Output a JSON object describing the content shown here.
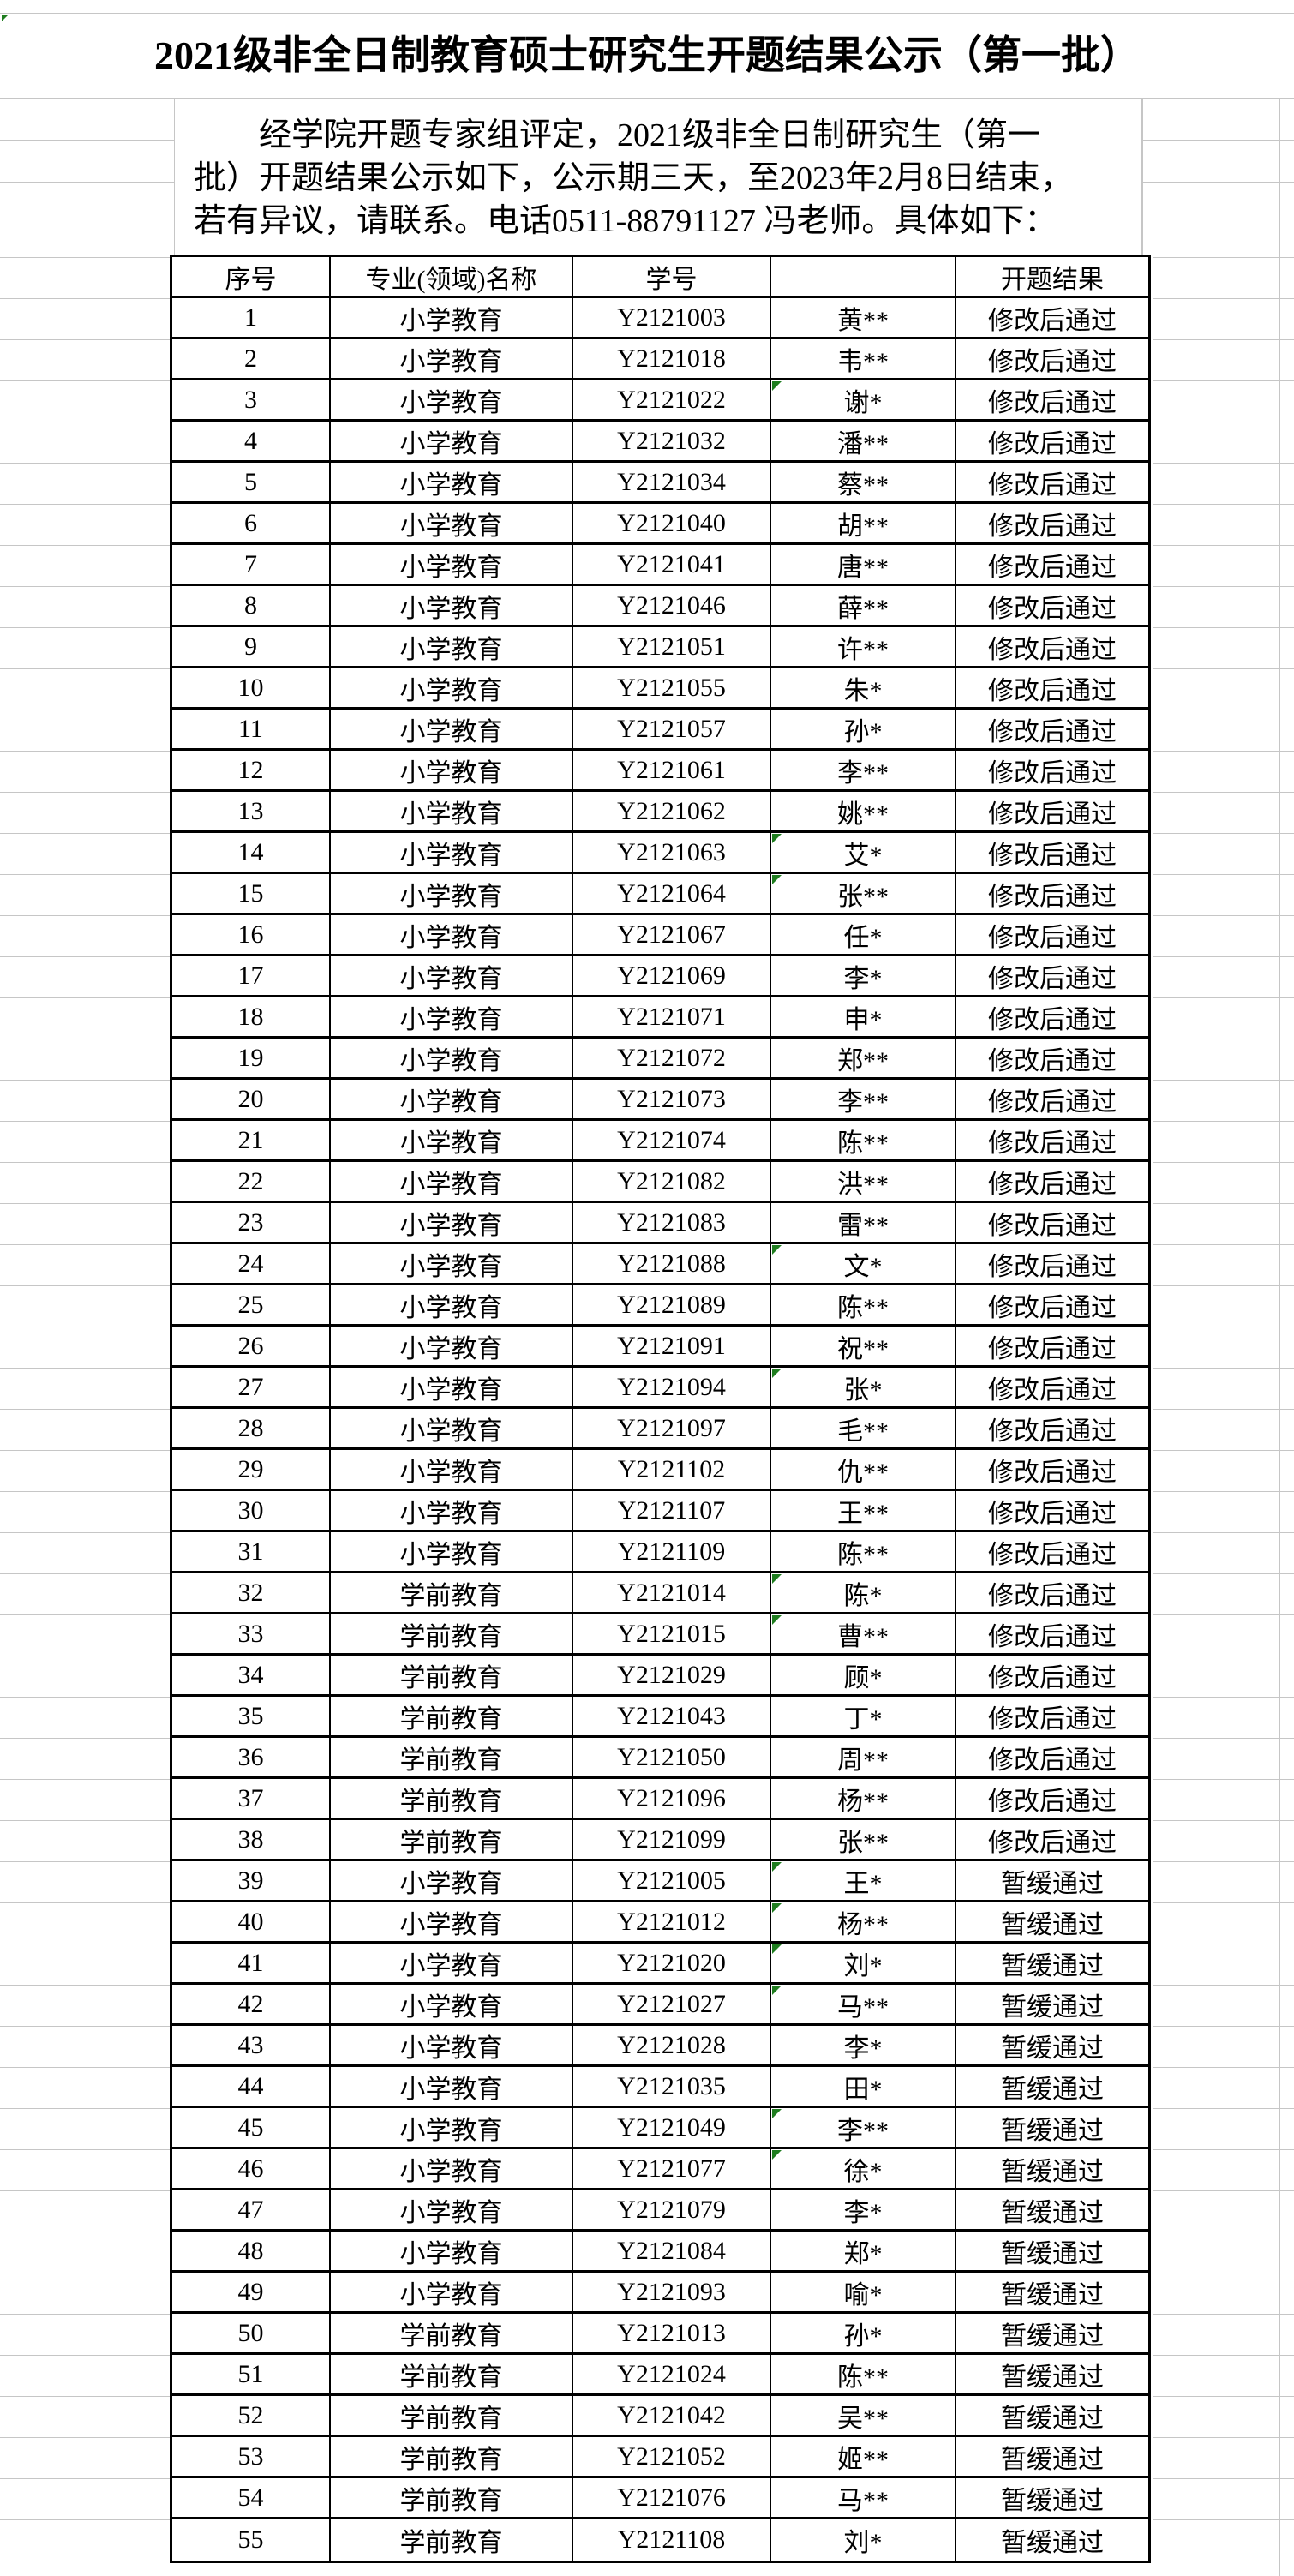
{
  "page": {
    "grid_color": "#c6c6c6",
    "table_border_color": "#000000",
    "flag_color": "#1f7d1f",
    "background": "#ffffff"
  },
  "title": "2021级非全日制教育硕士研究生开题结果公示（第一批）",
  "notice": {
    "lines": [
      "经学院开题专家组评定，2021级非全日制研究生（第一",
      "批）开题结果公示如下，公示期三天，至2023年2月8日结束，",
      "若有异议，请联系。电话0511-88791127 冯老师。具体如下："
    ]
  },
  "table": {
    "headers": [
      "序号",
      "专业(领域)名称",
      "学号",
      "",
      "开题结果"
    ],
    "rows": [
      {
        "no": "1",
        "major": "小学教育",
        "id": "Y2121003",
        "name": "黄**",
        "result": "修改后通过",
        "flag": false
      },
      {
        "no": "2",
        "major": "小学教育",
        "id": "Y2121018",
        "name": "韦**",
        "result": "修改后通过",
        "flag": false
      },
      {
        "no": "3",
        "major": "小学教育",
        "id": "Y2121022",
        "name": "谢*",
        "result": "修改后通过",
        "flag": true
      },
      {
        "no": "4",
        "major": "小学教育",
        "id": "Y2121032",
        "name": "潘**",
        "result": "修改后通过",
        "flag": false
      },
      {
        "no": "5",
        "major": "小学教育",
        "id": "Y2121034",
        "name": "蔡**",
        "result": "修改后通过",
        "flag": false
      },
      {
        "no": "6",
        "major": "小学教育",
        "id": "Y2121040",
        "name": "胡**",
        "result": "修改后通过",
        "flag": false
      },
      {
        "no": "7",
        "major": "小学教育",
        "id": "Y2121041",
        "name": "唐**",
        "result": "修改后通过",
        "flag": false
      },
      {
        "no": "8",
        "major": "小学教育",
        "id": "Y2121046",
        "name": "薛**",
        "result": "修改后通过",
        "flag": false
      },
      {
        "no": "9",
        "major": "小学教育",
        "id": "Y2121051",
        "name": "许**",
        "result": "修改后通过",
        "flag": false
      },
      {
        "no": "10",
        "major": "小学教育",
        "id": "Y2121055",
        "name": "朱*",
        "result": "修改后通过",
        "flag": false
      },
      {
        "no": "11",
        "major": "小学教育",
        "id": "Y2121057",
        "name": "孙*",
        "result": "修改后通过",
        "flag": false
      },
      {
        "no": "12",
        "major": "小学教育",
        "id": "Y2121061",
        "name": "李**",
        "result": "修改后通过",
        "flag": false
      },
      {
        "no": "13",
        "major": "小学教育",
        "id": "Y2121062",
        "name": "姚**",
        "result": "修改后通过",
        "flag": false
      },
      {
        "no": "14",
        "major": "小学教育",
        "id": "Y2121063",
        "name": "艾*",
        "result": "修改后通过",
        "flag": true
      },
      {
        "no": "15",
        "major": "小学教育",
        "id": "Y2121064",
        "name": "张**",
        "result": "修改后通过",
        "flag": true
      },
      {
        "no": "16",
        "major": "小学教育",
        "id": "Y2121067",
        "name": "任*",
        "result": "修改后通过",
        "flag": false
      },
      {
        "no": "17",
        "major": "小学教育",
        "id": "Y2121069",
        "name": "李*",
        "result": "修改后通过",
        "flag": false
      },
      {
        "no": "18",
        "major": "小学教育",
        "id": "Y2121071",
        "name": "申*",
        "result": "修改后通过",
        "flag": false
      },
      {
        "no": "19",
        "major": "小学教育",
        "id": "Y2121072",
        "name": "郑**",
        "result": "修改后通过",
        "flag": false
      },
      {
        "no": "20",
        "major": "小学教育",
        "id": "Y2121073",
        "name": "李**",
        "result": "修改后通过",
        "flag": false
      },
      {
        "no": "21",
        "major": "小学教育",
        "id": "Y2121074",
        "name": "陈**",
        "result": "修改后通过",
        "flag": false
      },
      {
        "no": "22",
        "major": "小学教育",
        "id": "Y2121082",
        "name": "洪**",
        "result": "修改后通过",
        "flag": false
      },
      {
        "no": "23",
        "major": "小学教育",
        "id": "Y2121083",
        "name": "雷**",
        "result": "修改后通过",
        "flag": false
      },
      {
        "no": "24",
        "major": "小学教育",
        "id": "Y2121088",
        "name": "文*",
        "result": "修改后通过",
        "flag": true
      },
      {
        "no": "25",
        "major": "小学教育",
        "id": "Y2121089",
        "name": "陈**",
        "result": "修改后通过",
        "flag": false
      },
      {
        "no": "26",
        "major": "小学教育",
        "id": "Y2121091",
        "name": "祝**",
        "result": "修改后通过",
        "flag": false
      },
      {
        "no": "27",
        "major": "小学教育",
        "id": "Y2121094",
        "name": "张*",
        "result": "修改后通过",
        "flag": true
      },
      {
        "no": "28",
        "major": "小学教育",
        "id": "Y2121097",
        "name": "毛**",
        "result": "修改后通过",
        "flag": false
      },
      {
        "no": "29",
        "major": "小学教育",
        "id": "Y2121102",
        "name": "仇**",
        "result": "修改后通过",
        "flag": false
      },
      {
        "no": "30",
        "major": "小学教育",
        "id": "Y2121107",
        "name": "王**",
        "result": "修改后通过",
        "flag": false
      },
      {
        "no": "31",
        "major": "小学教育",
        "id": "Y2121109",
        "name": "陈**",
        "result": "修改后通过",
        "flag": false
      },
      {
        "no": "32",
        "major": "学前教育",
        "id": "Y2121014",
        "name": "陈*",
        "result": "修改后通过",
        "flag": true
      },
      {
        "no": "33",
        "major": "学前教育",
        "id": "Y2121015",
        "name": "曹**",
        "result": "修改后通过",
        "flag": true
      },
      {
        "no": "34",
        "major": "学前教育",
        "id": "Y2121029",
        "name": "顾*",
        "result": "修改后通过",
        "flag": false
      },
      {
        "no": "35",
        "major": "学前教育",
        "id": "Y2121043",
        "name": "丁*",
        "result": "修改后通过",
        "flag": false
      },
      {
        "no": "36",
        "major": "学前教育",
        "id": "Y2121050",
        "name": "周**",
        "result": "修改后通过",
        "flag": false
      },
      {
        "no": "37",
        "major": "学前教育",
        "id": "Y2121096",
        "name": "杨**",
        "result": "修改后通过",
        "flag": false
      },
      {
        "no": "38",
        "major": "学前教育",
        "id": "Y2121099",
        "name": "张**",
        "result": "修改后通过",
        "flag": false
      },
      {
        "no": "39",
        "major": "小学教育",
        "id": "Y2121005",
        "name": "王*",
        "result": "暂缓通过",
        "flag": true
      },
      {
        "no": "40",
        "major": "小学教育",
        "id": "Y2121012",
        "name": "杨**",
        "result": "暂缓通过",
        "flag": true
      },
      {
        "no": "41",
        "major": "小学教育",
        "id": "Y2121020",
        "name": "刘*",
        "result": "暂缓通过",
        "flag": true
      },
      {
        "no": "42",
        "major": "小学教育",
        "id": "Y2121027",
        "name": "马**",
        "result": "暂缓通过",
        "flag": true
      },
      {
        "no": "43",
        "major": "小学教育",
        "id": "Y2121028",
        "name": "李*",
        "result": "暂缓通过",
        "flag": false
      },
      {
        "no": "44",
        "major": "小学教育",
        "id": "Y2121035",
        "name": "田*",
        "result": "暂缓通过",
        "flag": false
      },
      {
        "no": "45",
        "major": "小学教育",
        "id": "Y2121049",
        "name": "李**",
        "result": "暂缓通过",
        "flag": true
      },
      {
        "no": "46",
        "major": "小学教育",
        "id": "Y2121077",
        "name": "徐*",
        "result": "暂缓通过",
        "flag": true
      },
      {
        "no": "47",
        "major": "小学教育",
        "id": "Y2121079",
        "name": "李*",
        "result": "暂缓通过",
        "flag": false
      },
      {
        "no": "48",
        "major": "小学教育",
        "id": "Y2121084",
        "name": "郑*",
        "result": "暂缓通过",
        "flag": false
      },
      {
        "no": "49",
        "major": "小学教育",
        "id": "Y2121093",
        "name": "喻*",
        "result": "暂缓通过",
        "flag": false
      },
      {
        "no": "50",
        "major": "学前教育",
        "id": "Y2121013",
        "name": "孙*",
        "result": "暂缓通过",
        "flag": false
      },
      {
        "no": "51",
        "major": "学前教育",
        "id": "Y2121024",
        "name": "陈**",
        "result": "暂缓通过",
        "flag": false
      },
      {
        "no": "52",
        "major": "学前教育",
        "id": "Y2121042",
        "name": "吴**",
        "result": "暂缓通过",
        "flag": false
      },
      {
        "no": "53",
        "major": "学前教育",
        "id": "Y2121052",
        "name": "姬**",
        "result": "暂缓通过",
        "flag": false
      },
      {
        "no": "54",
        "major": "学前教育",
        "id": "Y2121076",
        "name": "马**",
        "result": "暂缓通过",
        "flag": false
      },
      {
        "no": "55",
        "major": "学前教育",
        "id": "Y2121108",
        "name": "刘*",
        "result": "暂缓通过",
        "flag": false
      }
    ]
  }
}
